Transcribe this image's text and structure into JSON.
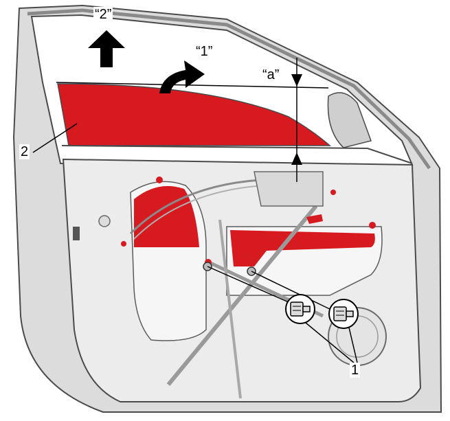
{
  "labels": {
    "callout_1": "1",
    "callout_2": "2",
    "arrow_1": "“1”",
    "arrow_2": "“2”",
    "dimension_a": "“a”"
  },
  "colors": {
    "glass": "#d71920",
    "door_panel": "#eeeeee",
    "door_shadow": "#b9b9b9",
    "outline": "#555555",
    "text": "#000000"
  }
}
